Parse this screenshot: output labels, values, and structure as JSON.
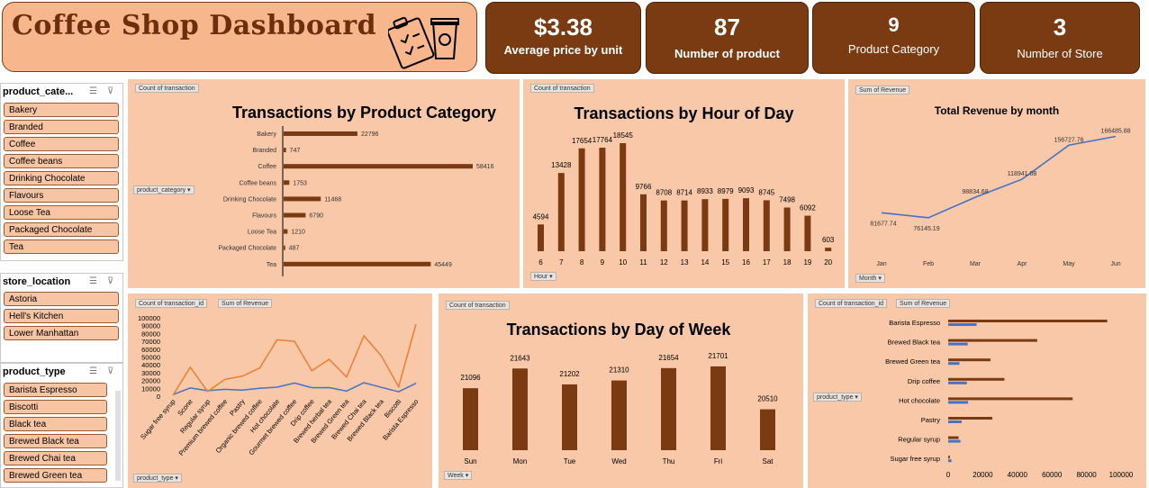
{
  "header": {
    "title": "Coffee Shop Dashboard"
  },
  "kpis": [
    {
      "value": "$3.38",
      "label": "Average price by unit"
    },
    {
      "value": "87",
      "label": "Number of product"
    },
    {
      "value": "9",
      "label": "Product Category"
    },
    {
      "value": "3",
      "label": "Number of Store"
    }
  ],
  "slicers": {
    "category": {
      "title": "product_cate...",
      "items": [
        "Bakery",
        "Branded",
        "Coffee",
        "Coffee beans",
        "Drinking Chocolate",
        "Flavours",
        "Loose Tea",
        "Packaged Chocolate",
        "Tea"
      ]
    },
    "store": {
      "title": "store_location",
      "items": [
        "Astoria",
        "Hell's Kitchen",
        "Lower Manhattan"
      ]
    },
    "product_type": {
      "title": "product_type",
      "items": [
        "Barista Espresso",
        "Biscotti",
        "Black tea",
        "Brewed Black tea",
        "Brewed Chai tea",
        "Brewed Green tea"
      ]
    }
  },
  "field_buttons": {
    "count_transaction": "Count of transaction",
    "product_category": "product_category",
    "hour": "Hour",
    "sum_revenue": "Sum of Revenue",
    "month": "Month",
    "count_transaction_id": "Count of transaction_id",
    "product_type": "product_type",
    "week": "Week"
  },
  "chart_data": [
    {
      "id": "by_category",
      "type": "bar",
      "orientation": "horizontal",
      "title": "Transactions by Product  Category",
      "categories": [
        "Bakery",
        "Branded",
        "Coffee",
        "Coffee beans",
        "Drinking Chocolate",
        "Flavours",
        "Loose Tea",
        "Packaged Chocolate",
        "Tea"
      ],
      "values": [
        22796,
        747,
        58416,
        1753,
        11468,
        6790,
        1210,
        487,
        45449
      ],
      "color": "#7a3b12"
    },
    {
      "id": "by_hour",
      "type": "bar",
      "title": "Transactions by Hour of Day",
      "categories": [
        "6",
        "7",
        "8",
        "9",
        "10",
        "11",
        "12",
        "13",
        "14",
        "15",
        "16",
        "17",
        "18",
        "19",
        "20"
      ],
      "values": [
        4594,
        13428,
        17654,
        17764,
        18545,
        9766,
        8708,
        8714,
        8933,
        8979,
        9093,
        8745,
        7498,
        6092,
        603
      ],
      "color": "#7a3b12"
    },
    {
      "id": "revenue_month",
      "type": "line",
      "title": "Total Revenue by month",
      "categories": [
        "Jan",
        "Feb",
        "Mar",
        "Apr",
        "May",
        "Jun"
      ],
      "values": [
        81677.74,
        76145.19,
        98834.68,
        118941.08,
        156727.76,
        166485.88
      ],
      "color": "#4472c4"
    },
    {
      "id": "by_product_type_line",
      "type": "line",
      "categories": [
        "Sugar free syrup",
        "Scone",
        "Regular syrup",
        "Premium brewed coffee",
        "Pastry",
        "Organic brewed coffee",
        "Hot chocolate",
        "Gourmet brewed coffee",
        "Drip coffee",
        "Brewed herbal tea",
        "Brewed Green tea",
        "Brewed Chai tea",
        "Brewed Black tea",
        "Biscotti",
        "Barista Espresso"
      ],
      "series": [
        {
          "name": "Count of transaction_id",
          "values": [
            1900,
            10500,
            7100,
            8700,
            7800,
            10000,
            11500,
            16800,
            10800,
            10900,
            6500,
            17200,
            11300,
            5700,
            16400
          ],
          "color": "#4472c4"
        },
        {
          "name": "Sum of Revenue",
          "values": [
            1000,
            37000,
            6000,
            21500,
            25500,
            36000,
            72000,
            70000,
            32500,
            47000,
            24500,
            77000,
            51500,
            12000,
            92000
          ],
          "color": "#ed7d31"
        }
      ],
      "yticks": [
        "100000",
        "90000",
        "80000",
        "70000",
        "60000",
        "50000",
        "40000",
        "30000",
        "20000",
        "10000",
        "0"
      ],
      "ylim": [
        0,
        100000
      ]
    },
    {
      "id": "by_weekday",
      "type": "bar",
      "title": "Transactions by Day of Week",
      "categories": [
        "Sun",
        "Mon",
        "Tue",
        "Wed",
        "Thu",
        "Fri",
        "Sat"
      ],
      "values": [
        21096,
        21643,
        21202,
        21310,
        21654,
        21701,
        20510
      ],
      "color": "#7a3b12"
    },
    {
      "id": "by_product_type_bar",
      "type": "bar",
      "orientation": "horizontal",
      "categories": [
        "Barista Espresso",
        "Brewed Black tea",
        "Brewed Green tea",
        "Drip coffee",
        "Hot chocolate",
        "Pastry",
        "Regular syrup",
        "Sugar free syrup"
      ],
      "series": [
        {
          "name": "Sum of Revenue",
          "values": [
            92000,
            51500,
            24500,
            32500,
            72000,
            25500,
            6000,
            1000
          ],
          "color": "#7a3b12"
        },
        {
          "name": "Count of transaction_id",
          "values": [
            16400,
            11300,
            6500,
            10800,
            11500,
            7800,
            7100,
            1900
          ],
          "color": "#4472c4"
        }
      ],
      "xticks": [
        "0",
        "20000",
        "40000",
        "60000",
        "80000",
        "100000"
      ],
      "xlim": [
        0,
        100000
      ]
    }
  ]
}
